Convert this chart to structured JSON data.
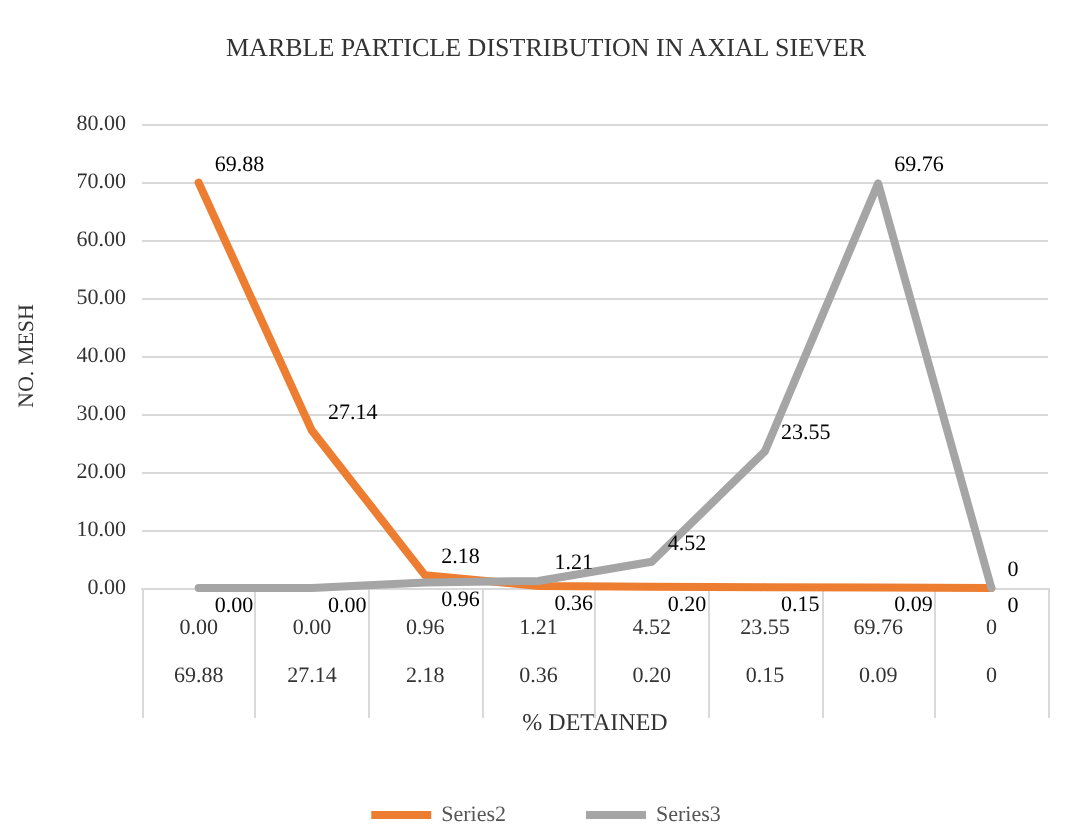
{
  "chart_data": {
    "type": "line",
    "title": "MARBLE PARTICLE DISTRIBUTION IN AXIAL SIEVER",
    "xlabel": "% DETAINED",
    "ylabel": "NO. MESH",
    "categories": [
      "0.00\n69.88",
      "0.00\n27.14",
      "0.96\n2.18",
      "1.21\n0.36",
      "4.52\n0.20",
      "23.55\n0.15",
      "69.76\n0.09",
      "0\n0"
    ],
    "series": [
      {
        "name": "Series2",
        "color": "#ed7d31",
        "values": [
          69.88,
          27.14,
          2.18,
          0.36,
          0.2,
          0.15,
          0.09,
          0
        ],
        "value_labels": [
          "69.88",
          "27.14",
          "2.18",
          "0.36",
          "0.20",
          "0.15",
          "0.09",
          "0"
        ]
      },
      {
        "name": "Series3",
        "color": "#a5a5a5",
        "values": [
          0.0,
          0.0,
          0.96,
          1.21,
          4.52,
          23.55,
          69.76,
          0
        ],
        "value_labels": [
          "0.00",
          "0.00",
          "0.96",
          "1.21",
          "4.52",
          "23.55",
          "69.76",
          "0"
        ]
      }
    ],
    "ylim": [
      0,
      80
    ],
    "yticks": [
      {
        "value": 0,
        "label": "0.00"
      },
      {
        "value": 10,
        "label": "10.00"
      },
      {
        "value": 20,
        "label": "20.00"
      },
      {
        "value": 30,
        "label": "30.00"
      },
      {
        "value": 40,
        "label": "40.00"
      },
      {
        "value": 50,
        "label": "50.00"
      },
      {
        "value": 60,
        "label": "60.00"
      },
      {
        "value": 70,
        "label": "70.00"
      },
      {
        "value": 80,
        "label": "80.00"
      }
    ],
    "grid": "y",
    "legend": "bottom",
    "marker": "none",
    "line_style": "solid"
  }
}
